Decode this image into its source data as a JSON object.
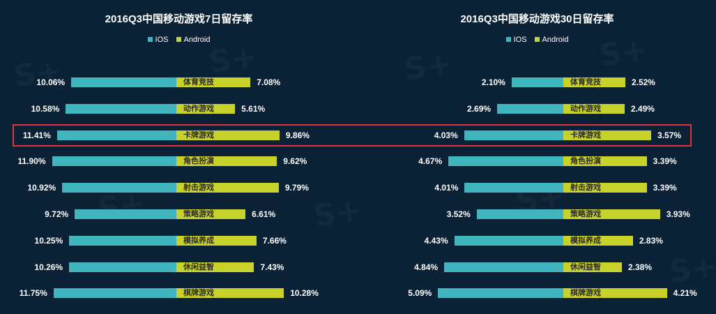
{
  "colors": {
    "ios": "#40b5bd",
    "android": "#c9d22a"
  },
  "chart_data": [
    {
      "type": "bar",
      "orientation": "diverging-horizontal",
      "title": "2016Q3中国移动游戏7日留存率",
      "legend": [
        "IOS",
        "Android"
      ],
      "categories": [
        "体育竞技",
        "动作游戏",
        "卡牌游戏",
        "角色扮演",
        "射击游戏",
        "策略游戏",
        "模拟养成",
        "休闲益智",
        "棋牌游戏"
      ],
      "series": [
        {
          "name": "IOS",
          "values": [
            10.06,
            10.58,
            11.41,
            11.9,
            10.92,
            9.72,
            10.25,
            10.26,
            11.75
          ],
          "labels": [
            "10.06%",
            "10.58%",
            "11.41%",
            "11.90%",
            "10.92%",
            "9.72%",
            "10.25%",
            "10.26%",
            "11.75%"
          ]
        },
        {
          "name": "Android",
          "values": [
            7.08,
            5.61,
            9.86,
            9.62,
            9.79,
            6.61,
            7.66,
            7.43,
            10.28
          ],
          "labels": [
            "7.08%",
            "5.61%",
            "9.86%",
            "9.62%",
            "9.79%",
            "6.61%",
            "7.66%",
            "7.43%",
            "10.28%"
          ]
        }
      ]
    },
    {
      "type": "bar",
      "orientation": "diverging-horizontal",
      "title": "2016Q3中国移动游戏30日留存率",
      "legend": [
        "IOS",
        "Android"
      ],
      "categories": [
        "体育竞技",
        "动作游戏",
        "卡牌游戏",
        "角色扮演",
        "射击游戏",
        "策略游戏",
        "模拟养成",
        "休闲益智",
        "棋牌游戏"
      ],
      "series": [
        {
          "name": "IOS",
          "values": [
            2.1,
            2.69,
            4.03,
            4.67,
            4.01,
            3.52,
            4.43,
            4.84,
            5.09
          ],
          "labels": [
            "2.10%",
            "2.69%",
            "4.03%",
            "4.67%",
            "4.01%",
            "3.52%",
            "4.43%",
            "4.84%",
            "5.09%"
          ]
        },
        {
          "name": "Android",
          "values": [
            2.52,
            2.49,
            3.57,
            3.39,
            3.39,
            3.93,
            2.83,
            2.38,
            4.21
          ],
          "labels": [
            "2.52%",
            "2.49%",
            "3.57%",
            "3.39%",
            "3.39%",
            "3.93%",
            "2.83%",
            "2.38%",
            "4.21%"
          ]
        }
      ]
    }
  ],
  "highlight_category": "卡牌游戏"
}
